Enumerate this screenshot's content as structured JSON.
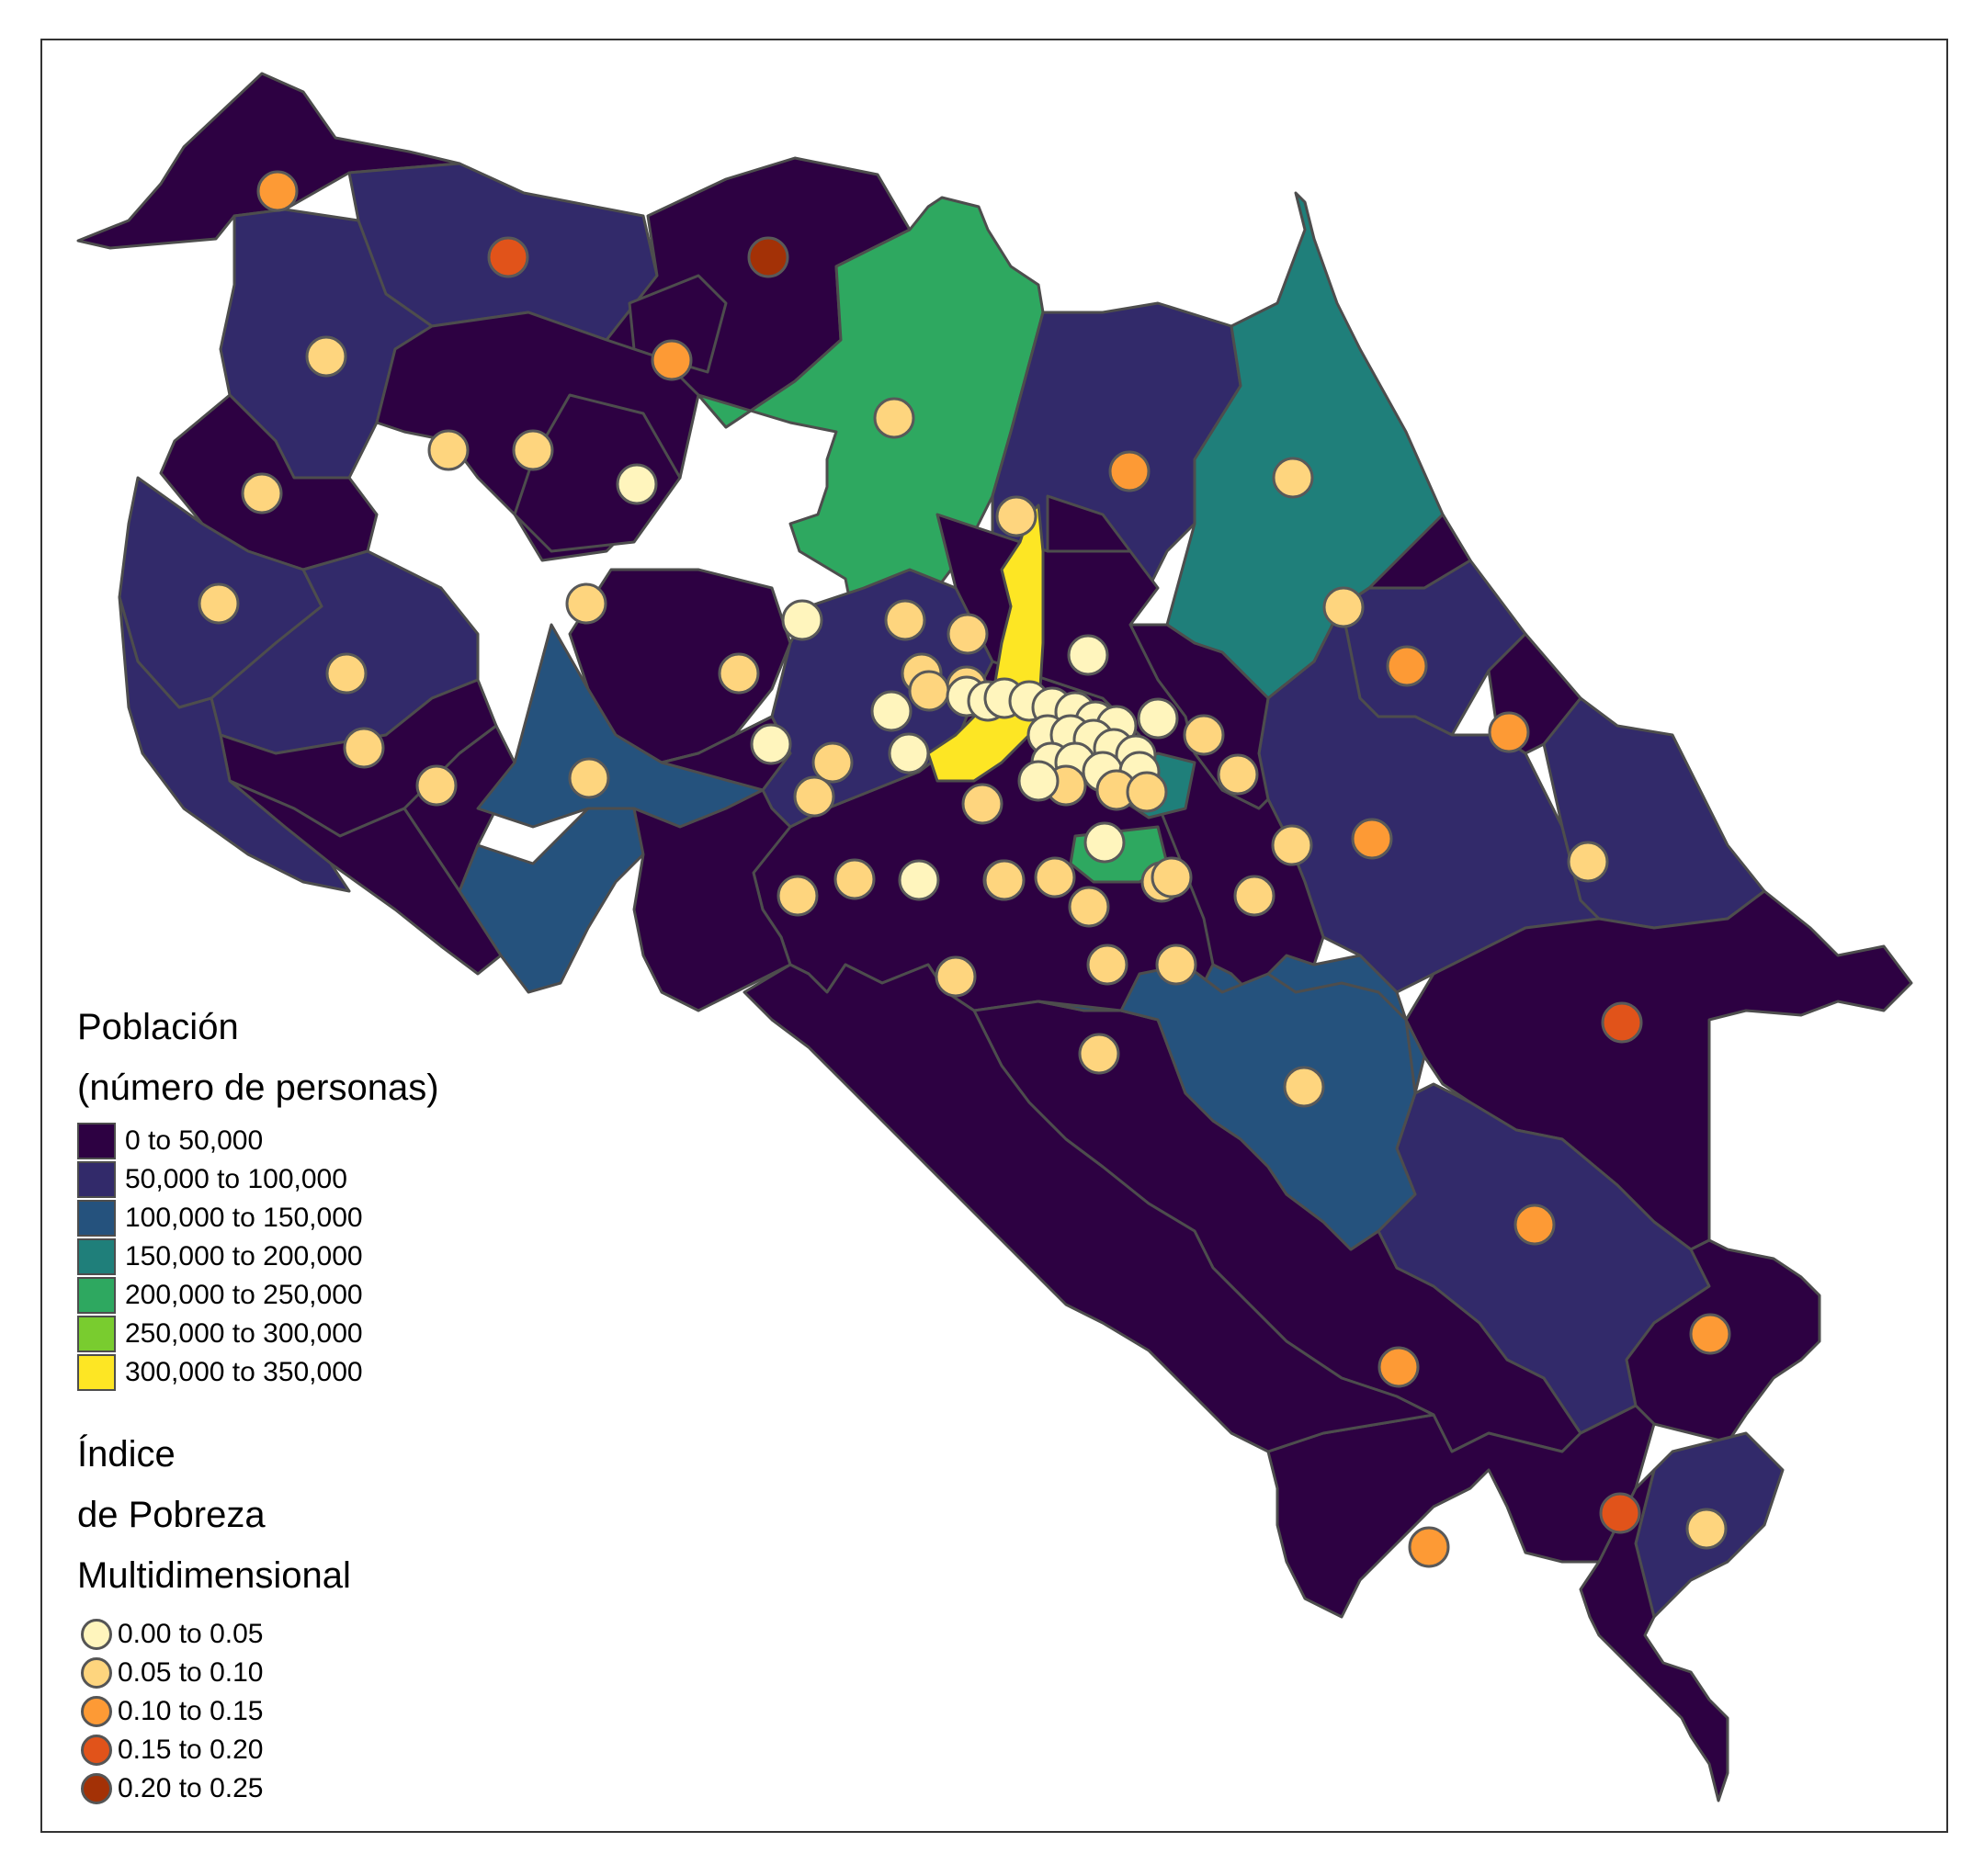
{
  "map": {
    "outline_color": "#4d4d4d",
    "symbol_stroke": "#595959"
  },
  "legend_population": {
    "title_line1": "Población",
    "title_line2": "(número de personas)",
    "items": [
      {
        "label": "0 to 50,000",
        "color": "#2d0142"
      },
      {
        "label": "50,000 to 100,000",
        "color": "#322a6a"
      },
      {
        "label": "100,000 to 150,000",
        "color": "#25527d"
      },
      {
        "label": "150,000 to 200,000",
        "color": "#1f7f7a"
      },
      {
        "label": "200,000 to 250,000",
        "color": "#2ea860"
      },
      {
        "label": "250,000 to 300,000",
        "color": "#79cc2f"
      },
      {
        "label": "300,000 to 350,000",
        "color": "#fde624"
      }
    ]
  },
  "legend_ipm": {
    "title_line1": "Índice",
    "title_line2": "de Pobreza",
    "title_line3": "Multidimensional",
    "items": [
      {
        "label": "0.00 to 0.05",
        "color": "#fff5bd"
      },
      {
        "label": "0.05 to 0.10",
        "color": "#fed57e"
      },
      {
        "label": "0.10 to 0.15",
        "color": "#fd9a35"
      },
      {
        "label": "0.15 to 0.20",
        "color": "#e1531a"
      },
      {
        "label": "0.20 to 0.25",
        "color": "#a33106"
      }
    ]
  }
}
